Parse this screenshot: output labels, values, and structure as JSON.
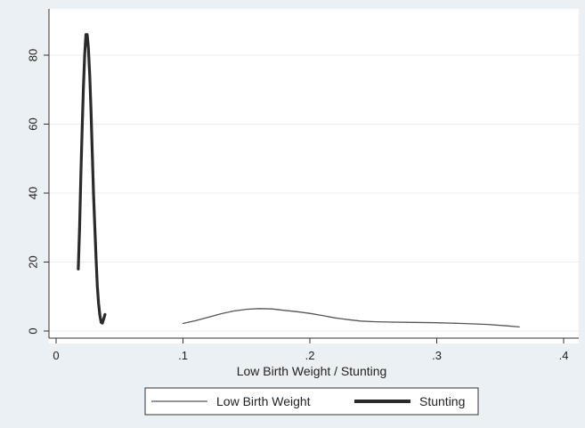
{
  "chart_data": {
    "type": "line",
    "title": "",
    "xlabel": "Low Birth Weight / Stunting",
    "ylabel": "",
    "xlim": [
      0,
      0.4
    ],
    "ylim": [
      0,
      87
    ],
    "x_ticks": [
      {
        "value": 0,
        "label": "0"
      },
      {
        "value": 0.1,
        "label": ".1"
      },
      {
        "value": 0.2,
        "label": ".2"
      },
      {
        "value": 0.3,
        "label": ".3"
      },
      {
        "value": 0.4,
        "label": ".4"
      }
    ],
    "y_ticks": [
      {
        "value": 0,
        "label": "0"
      },
      {
        "value": 20,
        "label": "20"
      },
      {
        "value": 40,
        "label": "40"
      },
      {
        "value": 60,
        "label": "60"
      },
      {
        "value": 80,
        "label": "80"
      }
    ],
    "grid": true,
    "legend_position": "bottom",
    "series": [
      {
        "name": "Low Birth Weight",
        "style": "thin",
        "color": "#555555",
        "points": [
          [
            0.1,
            2.2
          ],
          [
            0.11,
            3.0
          ],
          [
            0.12,
            4.0
          ],
          [
            0.13,
            5.0
          ],
          [
            0.14,
            5.8
          ],
          [
            0.15,
            6.3
          ],
          [
            0.16,
            6.5
          ],
          [
            0.17,
            6.4
          ],
          [
            0.18,
            6.0
          ],
          [
            0.19,
            5.6
          ],
          [
            0.2,
            5.1
          ],
          [
            0.21,
            4.5
          ],
          [
            0.22,
            3.8
          ],
          [
            0.23,
            3.3
          ],
          [
            0.24,
            2.9
          ],
          [
            0.25,
            2.7
          ],
          [
            0.26,
            2.6
          ],
          [
            0.28,
            2.5
          ],
          [
            0.3,
            2.4
          ],
          [
            0.32,
            2.2
          ],
          [
            0.34,
            1.9
          ],
          [
            0.355,
            1.5
          ],
          [
            0.365,
            1.2
          ]
        ]
      },
      {
        "name": "Stunting",
        "style": "thick",
        "color": "#2a2a2a",
        "points": [
          [
            0.0175,
            18
          ],
          [
            0.0185,
            30
          ],
          [
            0.0195,
            45
          ],
          [
            0.0205,
            58
          ],
          [
            0.0215,
            70
          ],
          [
            0.0225,
            80
          ],
          [
            0.0235,
            86
          ],
          [
            0.0245,
            86
          ],
          [
            0.0255,
            82
          ],
          [
            0.0265,
            74
          ],
          [
            0.0275,
            64
          ],
          [
            0.0285,
            52
          ],
          [
            0.0295,
            40
          ],
          [
            0.0305,
            30
          ],
          [
            0.0315,
            21
          ],
          [
            0.0325,
            13
          ],
          [
            0.0335,
            8
          ],
          [
            0.0345,
            4.5
          ],
          [
            0.0355,
            2.5
          ],
          [
            0.0365,
            2.3
          ],
          [
            0.0375,
            3.5
          ],
          [
            0.0385,
            4.8
          ]
        ]
      }
    ]
  }
}
